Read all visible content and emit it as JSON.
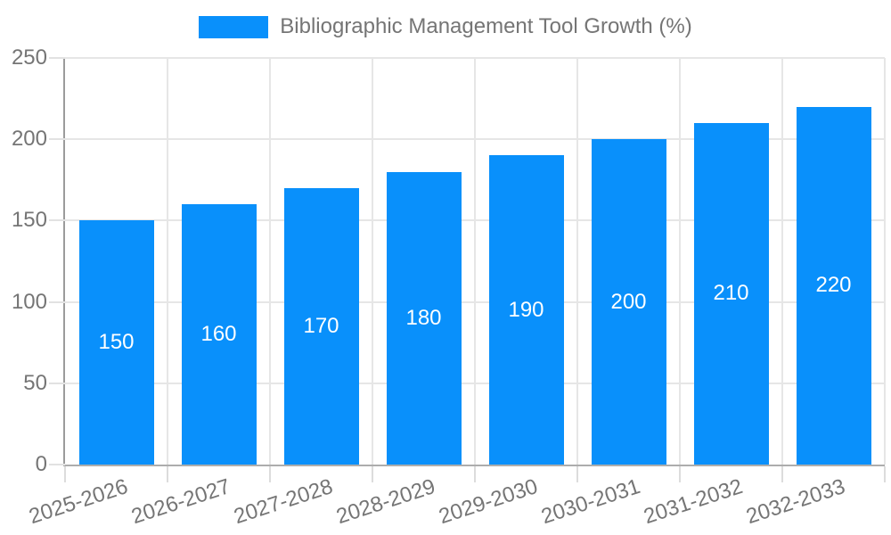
{
  "legend": {
    "label": "Bibliographic Management Tool Growth (%)"
  },
  "chart_data": {
    "type": "bar",
    "title": "Bibliographic Management Tool Growth (%)",
    "categories": [
      "2025-2026",
      "2026-2027",
      "2027-2028",
      "2028-2029",
      "2029-2030",
      "2030-2031",
      "2031-2032",
      "2032-2033"
    ],
    "values": [
      150,
      160,
      170,
      180,
      190,
      200,
      210,
      220
    ],
    "xlabel": "",
    "ylabel": "",
    "ylim": [
      0,
      250
    ],
    "yticks": [
      0,
      50,
      100,
      150,
      200,
      250
    ],
    "grid": true,
    "legend_position": "top",
    "value_labels": "inside-center",
    "colors": {
      "bar": "#0990FB",
      "grid": "#E6E6E6",
      "axis": "#9B9B9B",
      "tick_text": "#757575",
      "value_label_text": "#FFFFFF"
    }
  }
}
